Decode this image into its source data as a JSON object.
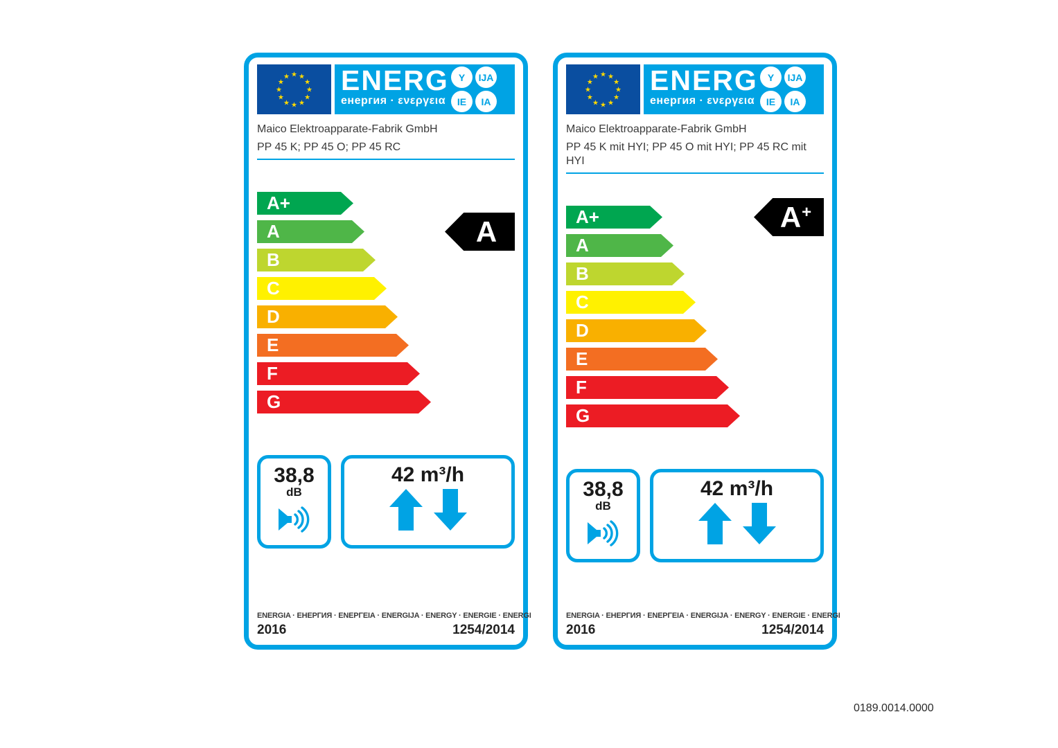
{
  "page": {
    "footer_code": "0189.0014.0000"
  },
  "shared": {
    "colors": {
      "accent_blue": "#00A3E4",
      "eu_flag_blue": "#0A4EA0",
      "star_yellow": "#FFD800",
      "rating_arrow_black": "#000000"
    },
    "logo": {
      "energ_text": "ENERG",
      "energ_subtitle": "енергия · ενεργεια",
      "badges": [
        "Y",
        "IJA",
        "IE",
        "IA"
      ]
    },
    "classes": [
      {
        "label": "A+",
        "color": "#00A650"
      },
      {
        "label": "A",
        "color": "#4FB648"
      },
      {
        "label": "B",
        "color": "#BED62F"
      },
      {
        "label": "C",
        "color": "#FFF100"
      },
      {
        "label": "D",
        "color": "#F9B000"
      },
      {
        "label": "E",
        "color": "#F36E22"
      },
      {
        "label": "F",
        "color": "#EC1C24"
      },
      {
        "label": "G",
        "color": "#EC1C24"
      }
    ],
    "energia_line": "ENERGIA · ЕНЕРГИЯ · ΕΝΕΡΓΕΙΑ · ENERGIJA · ENERGY · ENERGIE · ENERGI",
    "year": "2016",
    "regulation": "1254/2014"
  },
  "labels": [
    {
      "supplier": "Maico Elektroapparate-Fabrik GmbH",
      "model": "PP 45 K; PP 45 O; PP 45 RC",
      "rating_letter": "A",
      "rating_suffix": "",
      "rating_row_index": 1,
      "noise_value": "38,8",
      "noise_unit": "dB",
      "airflow_value": "42 m³/h"
    },
    {
      "supplier": "Maico Elektroapparate-Fabrik GmbH",
      "model": "PP 45 K mit HYI; PP 45 O mit HYI; PP 45 RC mit HYI",
      "rating_letter": "A",
      "rating_suffix": "+",
      "rating_row_index": 0,
      "noise_value": "38,8",
      "noise_unit": "dB",
      "airflow_value": "42 m³/h"
    }
  ]
}
